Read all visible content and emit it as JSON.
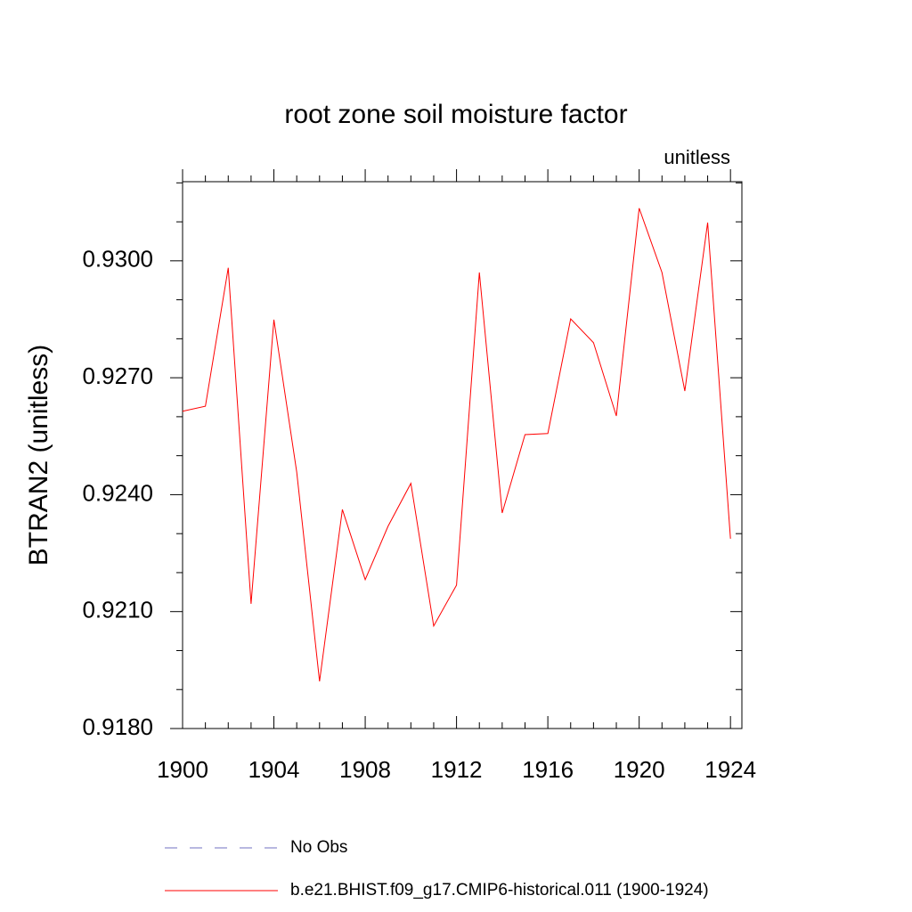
{
  "chart_data": {
    "type": "line",
    "title": "root zone soil moisture factor",
    "subtitle": "unitless",
    "ylabel": "BTRAN2  (unitless)",
    "x": [
      1900,
      1901,
      1902,
      1903,
      1904,
      1905,
      1906,
      1907,
      1908,
      1909,
      1910,
      1911,
      1912,
      1913,
      1914,
      1915,
      1916,
      1917,
      1918,
      1919,
      1920,
      1921,
      1922,
      1923,
      1924
    ],
    "series": [
      {
        "name": "No Obs",
        "color": "#7070c0",
        "dashed": true,
        "values": [
          null,
          null,
          null,
          null,
          null,
          null,
          null,
          null,
          null,
          null,
          null,
          null,
          null,
          null,
          null,
          null,
          null,
          null,
          null,
          null,
          null,
          null,
          null,
          null,
          null
        ]
      },
      {
        "name": "b.e21.BHIST.f09_g17.CMIP6-historical.011 (1900-1924)",
        "color": "#ff0000",
        "dashed": false,
        "values": [
          0.92614,
          0.92627,
          0.92982,
          0.9212,
          0.92849,
          0.92458,
          0.91921,
          0.92362,
          0.92182,
          0.92319,
          0.92429,
          0.92063,
          0.92168,
          0.9297,
          0.92353,
          0.92554,
          0.92557,
          0.92851,
          0.9279,
          0.92602,
          0.93135,
          0.9297,
          0.92666,
          0.93098,
          0.92287
        ]
      }
    ],
    "xlim": [
      1900,
      1924.5
    ],
    "xticks": [
      1900,
      1904,
      1908,
      1912,
      1916,
      1920,
      1924
    ],
    "ylim": [
      0.918,
      0.93203
    ],
    "yticks": [
      {
        "value": 0.918,
        "label": "0.9180"
      },
      {
        "value": 0.921,
        "label": "0.9210"
      },
      {
        "value": 0.924,
        "label": "0.9240"
      },
      {
        "value": 0.927,
        "label": "0.9270"
      },
      {
        "value": 0.93,
        "label": "0.9300"
      }
    ],
    "grid": false
  }
}
